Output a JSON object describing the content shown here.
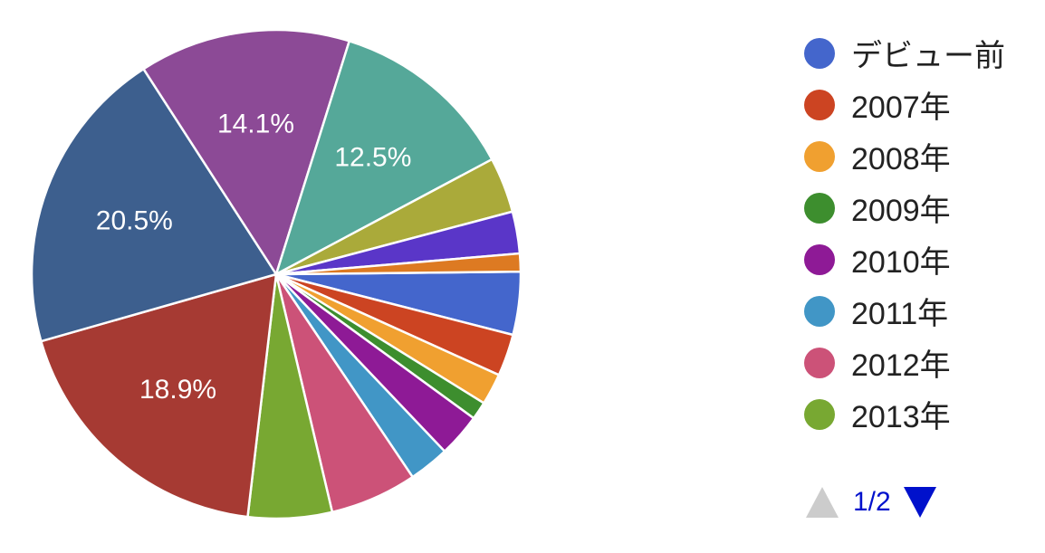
{
  "chart_data": {
    "type": "pie",
    "slices": [
      {
        "label": "デビュー前",
        "value": 4.2,
        "color": "#4466cc",
        "show_label": ""
      },
      {
        "label": "2007年",
        "value": 2.8,
        "color": "#cc4422",
        "show_label": ""
      },
      {
        "label": "2008年",
        "value": 2.1,
        "color": "#f0a030",
        "show_label": ""
      },
      {
        "label": "2009年",
        "value": 1.2,
        "color": "#3d8e2e",
        "show_label": ""
      },
      {
        "label": "2010年",
        "value": 2.9,
        "color": "#8e1a96",
        "show_label": ""
      },
      {
        "label": "2011年",
        "value": 2.7,
        "color": "#4196c6",
        "show_label": ""
      },
      {
        "label": "2012年",
        "value": 5.8,
        "color": "#cc5278",
        "show_label": ""
      },
      {
        "label": "2013年",
        "value": 5.6,
        "color": "#78a832",
        "show_label": ""
      },
      {
        "label": "",
        "value": 18.9,
        "color": "#a63a33",
        "show_label": "18.9%"
      },
      {
        "label": "",
        "value": 20.5,
        "color": "#3d5f8e",
        "show_label": "20.5%"
      },
      {
        "label": "",
        "value": 14.1,
        "color": "#8c4a96",
        "show_label": "14.1%"
      },
      {
        "label": "",
        "value": 12.5,
        "color": "#55a899",
        "show_label": "12.5%"
      },
      {
        "label": "",
        "value": 3.7,
        "color": "#aaaa3a",
        "show_label": ""
      },
      {
        "label": "",
        "value": 2.8,
        "color": "#5a36c8",
        "show_label": ""
      },
      {
        "label": "",
        "value": 1.2,
        "color": "#dd7a22",
        "show_label": ""
      }
    ],
    "legend": [
      {
        "label": "デビュー前",
        "color": "#4466cc"
      },
      {
        "label": "2007年",
        "color": "#cc4422"
      },
      {
        "label": "2008年",
        "color": "#f0a030"
      },
      {
        "label": "2009年",
        "color": "#3d8e2e"
      },
      {
        "label": "2010年",
        "color": "#8e1a96"
      },
      {
        "label": "2011年",
        "color": "#4196c6"
      },
      {
        "label": "2012年",
        "color": "#cc5278"
      },
      {
        "label": "2013年",
        "color": "#78a832"
      }
    ],
    "legend_position": "right"
  },
  "pager": {
    "text": "1/2",
    "prev_color": "#cccccc",
    "next_color": "#0011cc"
  }
}
